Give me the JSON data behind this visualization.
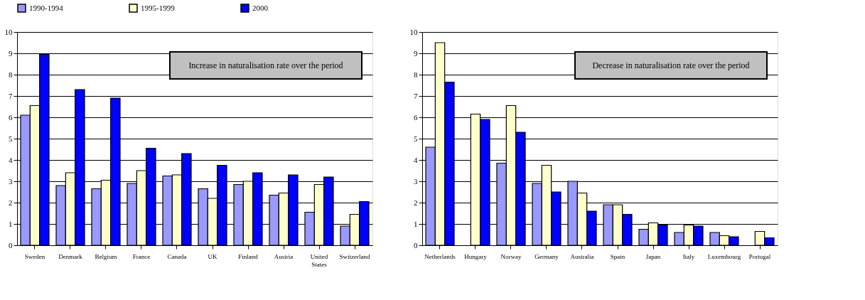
{
  "chart_data": [
    {
      "type": "bar",
      "annotations": [
        "Increase in naturalisation rate over the period"
      ],
      "categories": [
        "Sweden",
        "Denmark",
        "Belgium",
        "France",
        "Canada",
        "UK",
        "Finland",
        "Austria",
        "United States",
        "Switzerland"
      ],
      "series": [
        {
          "name": "1990-1994",
          "color": "#9999ff",
          "values": [
            6.1,
            2.8,
            2.65,
            2.9,
            3.25,
            2.65,
            2.85,
            2.35,
            1.55,
            0.9
          ]
        },
        {
          "name": "1995-1999",
          "color": "#ffffcc",
          "values": [
            6.55,
            3.4,
            3.05,
            3.5,
            3.3,
            2.2,
            3.0,
            2.45,
            2.85,
            1.45
          ]
        },
        {
          "name": "2000",
          "color": "#0000ff",
          "values": [
            8.95,
            7.3,
            6.9,
            4.55,
            4.3,
            3.75,
            3.4,
            3.3,
            3.2,
            2.05
          ]
        }
      ],
      "ylim": [
        0,
        10
      ],
      "yticks": [
        0,
        1,
        2,
        3,
        4,
        5,
        6,
        7,
        8,
        9,
        10
      ],
      "grid": "y",
      "legend": "top"
    },
    {
      "type": "bar",
      "annotations": [
        "Decrease in naturalisation rate over the period"
      ],
      "categories": [
        "Netherlands",
        "Hungary",
        "Norway",
        "Germany",
        "Australia",
        "Spain",
        "Japan",
        "Italy",
        "Luxembourg",
        "Portugal"
      ],
      "series": [
        {
          "name": "1990-1994",
          "color": "#9999ff",
          "values": [
            4.6,
            null,
            3.85,
            2.9,
            3.0,
            1.9,
            0.75,
            0.6,
            0.6,
            null
          ]
        },
        {
          "name": "1995-1999",
          "color": "#ffffcc",
          "values": [
            9.5,
            6.15,
            6.55,
            3.75,
            2.45,
            1.9,
            1.05,
            0.95,
            0.45,
            0.65
          ]
        },
        {
          "name": "2000",
          "color": "#0000ff",
          "values": [
            7.65,
            5.9,
            5.3,
            2.5,
            1.6,
            1.45,
            0.95,
            0.9,
            0.4,
            0.35
          ]
        }
      ],
      "ylim": [
        0,
        10
      ],
      "yticks": [
        0,
        1,
        2,
        3,
        4,
        5,
        6,
        7,
        8,
        9,
        10
      ],
      "grid": "y",
      "legend": "top"
    }
  ]
}
